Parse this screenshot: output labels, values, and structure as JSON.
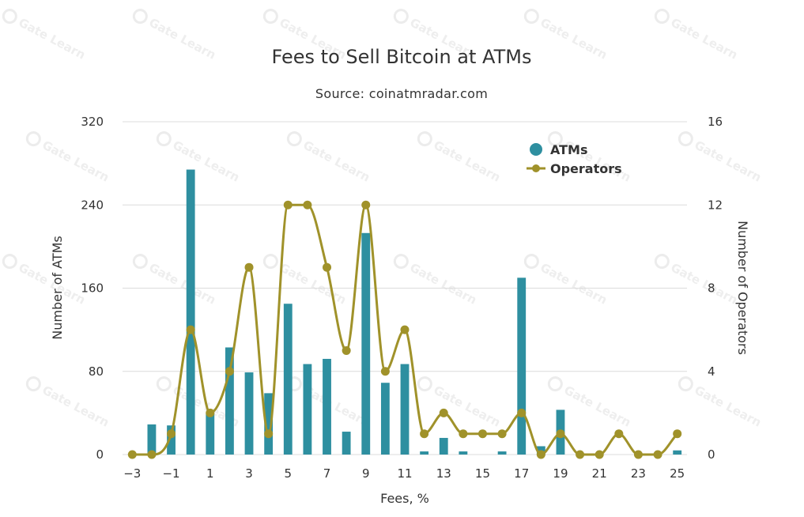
{
  "chart_data": {
    "type": "bar",
    "title": "Fees to Sell Bitcoin at ATMs",
    "subtitle": "Source: coinatmradar.com",
    "xlabel": "Fees, %",
    "ylabel_left": "Number of ATMs",
    "ylabel_right": "Number of Operators",
    "x": [
      -3,
      -2,
      -1,
      0,
      1,
      2,
      3,
      4,
      5,
      6,
      7,
      8,
      9,
      10,
      11,
      12,
      13,
      14,
      15,
      16,
      17,
      18,
      19,
      20,
      21,
      22,
      23,
      24,
      25
    ],
    "x_tick_labels": [
      "−3",
      "−1",
      "1",
      "3",
      "5",
      "7",
      "9",
      "11",
      "13",
      "15",
      "17",
      "19",
      "21",
      "23",
      "25"
    ],
    "x_tick_values": [
      -3,
      -1,
      1,
      3,
      5,
      7,
      9,
      11,
      13,
      15,
      17,
      19,
      21,
      23,
      25
    ],
    "xlim": [
      -3.5,
      25.5
    ],
    "y_left_ticks": [
      "0",
      "80",
      "160",
      "240",
      "320"
    ],
    "y_left_tick_values": [
      0,
      80,
      160,
      240,
      320
    ],
    "y_left_lim": [
      0,
      320
    ],
    "y_right_ticks": [
      "0",
      "4",
      "8",
      "12",
      "16"
    ],
    "y_right_tick_values": [
      0,
      4,
      8,
      12,
      16
    ],
    "y_right_lim": [
      0,
      16
    ],
    "grid": true,
    "legend_position": "top-right",
    "series": [
      {
        "name": "ATMs",
        "type": "bar",
        "axis": "left",
        "color": "#2e8fa0",
        "values": [
          0,
          29,
          28,
          274,
          40,
          103,
          79,
          59,
          145,
          87,
          92,
          22,
          213,
          69,
          87,
          3,
          16,
          3,
          0,
          3,
          170,
          8,
          43,
          0,
          0,
          0,
          0,
          0,
          4
        ]
      },
      {
        "name": "Operators",
        "type": "spline",
        "axis": "right",
        "color": "#a0922a",
        "values": [
          0,
          0,
          1,
          6,
          2,
          4,
          9,
          1,
          12,
          12,
          9,
          5,
          12,
          4,
          6,
          1,
          2,
          1,
          1,
          1,
          2,
          0,
          1,
          0,
          0,
          1,
          0,
          0,
          1
        ]
      }
    ]
  },
  "watermark_text": "Gate Learn",
  "watermark_logo_letter": "G"
}
